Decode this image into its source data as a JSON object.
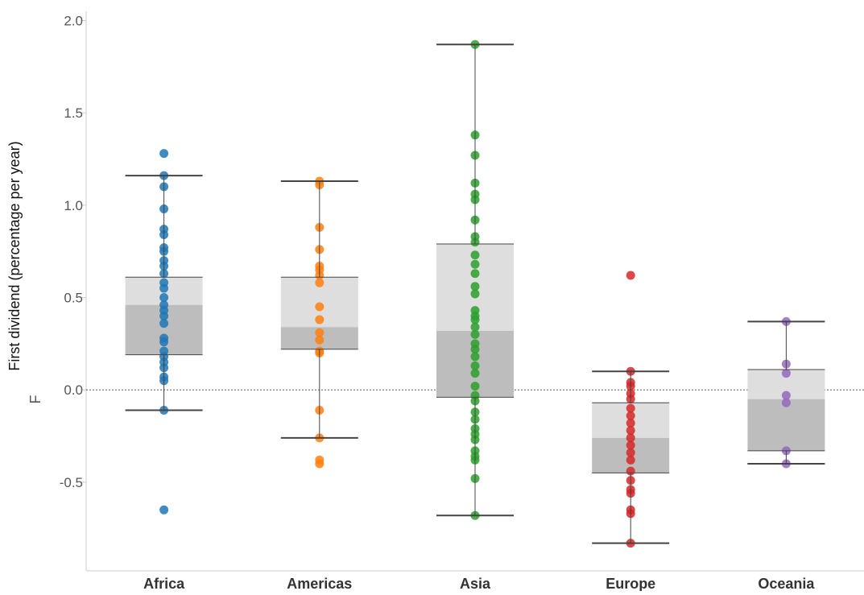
{
  "chart_data": {
    "type": "box",
    "ylabel": "First dividend (percentage per year)",
    "ylabel_secondary": "F",
    "xlabel": "",
    "ylim": [
      -0.98,
      2.05
    ],
    "y_ticks": [
      2.0,
      1.5,
      1.0,
      0.5,
      0.0,
      -0.5
    ],
    "y_tick_labels": [
      "2.0",
      "1.5",
      "1.0",
      "0.5",
      "0.0",
      "-0.5"
    ],
    "reference_line": 0.0,
    "grid": false,
    "categories": [
      "Africa",
      "Americas",
      "Asia",
      "Europe",
      "Oceania"
    ],
    "colors": {
      "Africa": "#1f77b4",
      "Americas": "#ff7f0e",
      "Asia": "#2ca02c",
      "Europe": "#d62728",
      "Oceania": "#9467bd",
      "box_upper": "#dedede",
      "box_lower": "#bdbdbd",
      "whisker": "#444444",
      "axis": "#cccccc"
    },
    "boxes": [
      {
        "category": "Africa",
        "whisker_low": -0.11,
        "q1": 0.19,
        "median": 0.46,
        "q3": 0.61,
        "whisker_high": 1.16
      },
      {
        "category": "Americas",
        "whisker_low": -0.26,
        "q1": 0.22,
        "median": 0.34,
        "q3": 0.61,
        "whisker_high": 1.13
      },
      {
        "category": "Asia",
        "whisker_low": -0.68,
        "q1": -0.04,
        "median": 0.32,
        "q3": 0.79,
        "whisker_high": 1.87
      },
      {
        "category": "Europe",
        "whisker_low": -0.83,
        "q1": -0.45,
        "median": -0.26,
        "q3": -0.07,
        "whisker_high": 0.1
      },
      {
        "category": "Oceania",
        "whisker_low": -0.4,
        "q1": -0.33,
        "median": -0.05,
        "q3": 0.11,
        "whisker_high": 0.37
      }
    ],
    "points": {
      "Africa": [
        1.28,
        1.16,
        1.1,
        0.98,
        0.87,
        0.84,
        0.77,
        0.75,
        0.7,
        0.67,
        0.63,
        0.58,
        0.55,
        0.5,
        0.46,
        0.43,
        0.4,
        0.36,
        0.28,
        0.26,
        0.21,
        0.18,
        0.15,
        0.12,
        0.07,
        0.05,
        -0.11,
        -0.65
      ],
      "Americas": [
        1.13,
        1.11,
        0.88,
        0.76,
        0.67,
        0.65,
        0.62,
        0.58,
        0.45,
        0.38,
        0.31,
        0.27,
        0.21,
        0.2,
        -0.11,
        -0.26,
        -0.38,
        -0.4
      ],
      "Asia": [
        1.87,
        1.38,
        1.27,
        1.12,
        1.06,
        1.03,
        0.92,
        0.83,
        0.8,
        0.73,
        0.68,
        0.63,
        0.56,
        0.52,
        0.43,
        0.4,
        0.38,
        0.34,
        0.3,
        0.25,
        0.22,
        0.18,
        0.13,
        0.09,
        0.02,
        -0.03,
        -0.06,
        -0.12,
        -0.16,
        -0.21,
        -0.24,
        -0.27,
        -0.33,
        -0.36,
        -0.38,
        -0.48,
        -0.68
      ],
      "Europe": [
        0.62,
        0.1,
        0.04,
        0.02,
        -0.02,
        -0.05,
        -0.1,
        -0.14,
        -0.18,
        -0.22,
        -0.26,
        -0.3,
        -0.34,
        -0.38,
        -0.44,
        -0.49,
        -0.54,
        -0.56,
        -0.65,
        -0.67,
        -0.83
      ],
      "Oceania": [
        0.37,
        0.14,
        0.09,
        -0.03,
        -0.07,
        -0.33,
        -0.4
      ]
    }
  }
}
